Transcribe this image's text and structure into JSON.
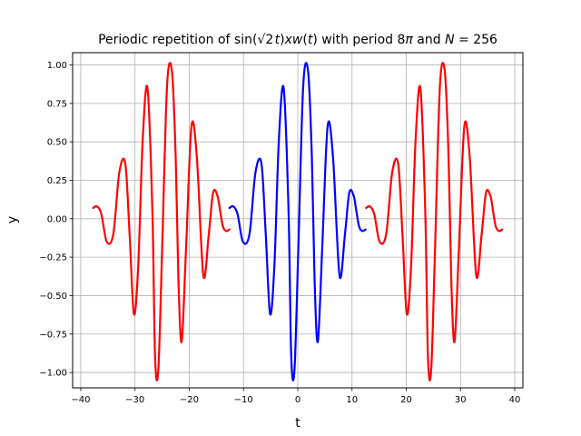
{
  "chart_data": {
    "type": "line",
    "title": "Periodic repetition of sin(√2 t)xw(t) with period 8π and N = 256",
    "xlabel": "t",
    "ylabel": "y",
    "xlim": [
      -41.5,
      41.5
    ],
    "ylim": [
      -1.1,
      1.08
    ],
    "grid": true,
    "x_ticks": [
      -40,
      -30,
      -20,
      -10,
      0,
      10,
      20,
      30,
      40
    ],
    "x_tick_labels": [
      "−40",
      "−30",
      "−20",
      "−10",
      "0",
      "10",
      "20",
      "30",
      "40"
    ],
    "y_ticks": [
      -1.0,
      -0.75,
      -0.5,
      -0.25,
      0.0,
      0.25,
      0.5,
      0.75,
      1.0
    ],
    "y_tick_labels": [
      "−1.00",
      "−0.75",
      "−0.50",
      "−0.25",
      "0.00",
      "0.25",
      "0.50",
      "0.75",
      "1.00"
    ],
    "series": [
      {
        "color": "#ff0000",
        "segments": [
          {
            "x": [
              -37.7,
              -37.0,
              -36.2,
              -35.2,
              -34.0,
              -32.9,
              -31.8,
              -31.0,
              -30.2,
              -29.4,
              -28.6,
              -27.7,
              -26.8,
              -26.3,
              -25.7,
              -25.0,
              -24.1,
              -23.2,
              -22.5,
              -22.0,
              -21.4,
              -20.6,
              -19.6,
              -18.6,
              -17.4,
              -16.4,
              -15.6,
              -14.8,
              -14.3,
              -13.8,
              -13.2,
              -12.6
            ],
            "y": [
              0.07,
              0.08,
              0.03,
              -0.15,
              -0.1,
              0.3,
              0.36,
              -0.1,
              -0.62,
              -0.3,
              0.5,
              0.85,
              0.05,
              -0.9,
              -0.98,
              -0.2,
              0.86,
              0.96,
              0.4,
              -0.4,
              -0.8,
              -0.2,
              0.6,
              0.4,
              -0.37,
              -0.1,
              0.17,
              0.15,
              0.05,
              -0.05,
              -0.08,
              -0.07
            ]
          },
          {
            "x": [
              12.6,
              13.3,
              14.1,
              15.1,
              16.3,
              17.4,
              18.5,
              19.3,
              20.1,
              20.9,
              21.7,
              22.6,
              23.5,
              24.0,
              24.6,
              25.3,
              26.2,
              27.1,
              27.8,
              28.3,
              28.9,
              29.7,
              30.7,
              31.7,
              32.9,
              33.9,
              34.7,
              35.5,
              36.0,
              36.5,
              37.1,
              37.7
            ],
            "y": [
              0.07,
              0.08,
              0.03,
              -0.15,
              -0.1,
              0.3,
              0.36,
              -0.1,
              -0.62,
              -0.3,
              0.5,
              0.85,
              0.05,
              -0.9,
              -0.98,
              -0.2,
              0.86,
              0.96,
              0.4,
              -0.4,
              -0.8,
              -0.2,
              0.6,
              0.4,
              -0.37,
              -0.1,
              0.17,
              0.15,
              0.05,
              -0.05,
              -0.08,
              -0.07
            ]
          }
        ]
      },
      {
        "color": "#0000ff",
        "segments": [
          {
            "x": [
              -12.6,
              -11.9,
              -11.1,
              -10.1,
              -8.9,
              -7.8,
              -6.7,
              -5.9,
              -5.1,
              -4.3,
              -3.5,
              -2.6,
              -1.7,
              -1.2,
              -0.6,
              0.1,
              1.0,
              1.9,
              2.6,
              3.1,
              3.7,
              4.5,
              5.5,
              6.5,
              7.7,
              8.7,
              9.5,
              10.3,
              10.8,
              11.3,
              11.9,
              12.5
            ],
            "y": [
              0.07,
              0.08,
              0.03,
              -0.15,
              -0.1,
              0.3,
              0.36,
              -0.1,
              -0.62,
              -0.3,
              0.5,
              0.85,
              0.05,
              -0.9,
              -0.98,
              -0.2,
              0.86,
              0.96,
              0.4,
              -0.4,
              -0.8,
              -0.2,
              0.6,
              0.4,
              -0.37,
              -0.1,
              0.17,
              0.15,
              0.05,
              -0.05,
              -0.08,
              -0.07
            ]
          }
        ]
      }
    ]
  }
}
